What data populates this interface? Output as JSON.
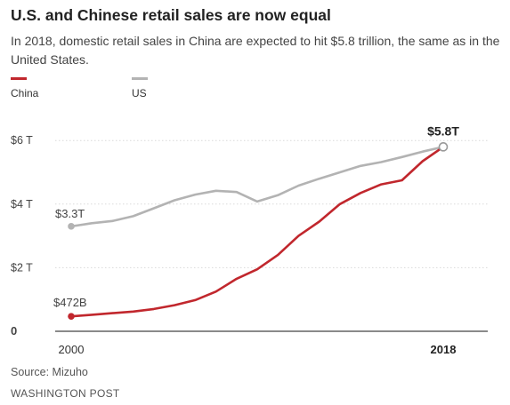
{
  "title": "U.S. and Chinese retail sales are now equal",
  "subtitle": "In 2018, domestic retail sales in China are expected to hit $5.8 trillion, the same as in the United States.",
  "source": "Source: Mizuho",
  "credit": "WASHINGTON POST",
  "colors": {
    "china": "#c1272d",
    "us": "#b3b3b3"
  },
  "chart_data": {
    "type": "line",
    "x": [
      2000,
      2001,
      2002,
      2003,
      2004,
      2005,
      2006,
      2007,
      2008,
      2009,
      2010,
      2011,
      2012,
      2013,
      2014,
      2015,
      2016,
      2017,
      2018
    ],
    "x_tick_labels": [
      "2000",
      "2018"
    ],
    "y_tick_labels": [
      "0",
      "$2 T",
      "$4 T",
      "$6 T"
    ],
    "y_ticks": [
      0,
      2,
      4,
      6
    ],
    "ylim": [
      0,
      6.5
    ],
    "grid": true,
    "legend": "top-left",
    "series": [
      {
        "name": "China",
        "color": "#c1272d",
        "values": [
          0.47,
          0.52,
          0.57,
          0.62,
          0.7,
          0.82,
          0.98,
          1.25,
          1.65,
          1.95,
          2.4,
          3.0,
          3.45,
          4.0,
          4.35,
          4.62,
          4.75,
          5.35,
          5.8
        ]
      },
      {
        "name": "US",
        "color": "#b3b3b3",
        "values": [
          3.3,
          3.4,
          3.47,
          3.62,
          3.87,
          4.12,
          4.3,
          4.42,
          4.38,
          4.08,
          4.28,
          4.58,
          4.8,
          5.0,
          5.2,
          5.32,
          5.48,
          5.65,
          5.8
        ]
      }
    ],
    "annotations": [
      {
        "text": "$3.3T"
      },
      {
        "text": "$472B"
      },
      {
        "text": "$5.8T"
      }
    ]
  }
}
